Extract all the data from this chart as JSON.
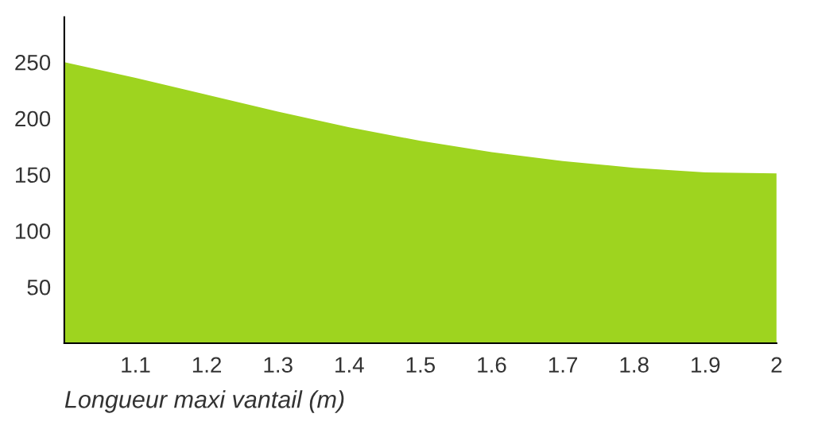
{
  "chart_data": {
    "type": "area",
    "xlabel": "Longueur maxi vantail (m)",
    "x": [
      1.0,
      1.1,
      1.2,
      1.3,
      1.4,
      1.5,
      1.6,
      1.7,
      1.8,
      1.9,
      2.0
    ],
    "series": [
      {
        "color": "#9ed41f",
        "values": [
          250,
          236,
          221,
          206,
          192,
          180,
          170,
          162,
          156,
          152,
          151
        ]
      }
    ],
    "xlim": [
      1.0,
      2.0
    ],
    "xticks": [
      1.1,
      1.2,
      1.3,
      1.4,
      1.5,
      1.6,
      1.7,
      1.8,
      1.9,
      2
    ],
    "ylim": [
      0,
      290
    ],
    "yticks": [
      50,
      100,
      150,
      200,
      250
    ],
    "grid": false,
    "legend": false
  }
}
